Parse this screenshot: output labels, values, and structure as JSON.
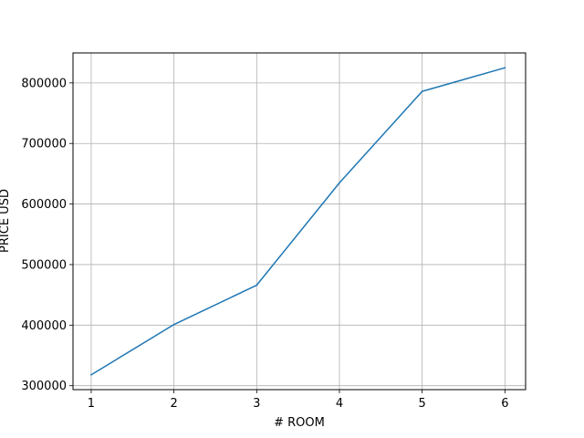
{
  "chart_data": {
    "type": "line",
    "title": "",
    "xlabel": "# ROOM",
    "ylabel": "PRICE USD",
    "x": [
      1,
      2,
      3,
      4,
      5,
      6
    ],
    "series": [
      {
        "values": [
          318000,
          401000,
          466000,
          635000,
          786000,
          825000
        ],
        "color": "#1f77b4"
      }
    ],
    "xlim": [
      0.78,
      6.25
    ],
    "ylim": [
      293500,
      849500
    ],
    "xticks": [
      1,
      2,
      3,
      4,
      5,
      6
    ],
    "yticks": [
      300000,
      400000,
      500000,
      600000,
      700000,
      800000
    ],
    "grid": true,
    "legend": "none"
  }
}
